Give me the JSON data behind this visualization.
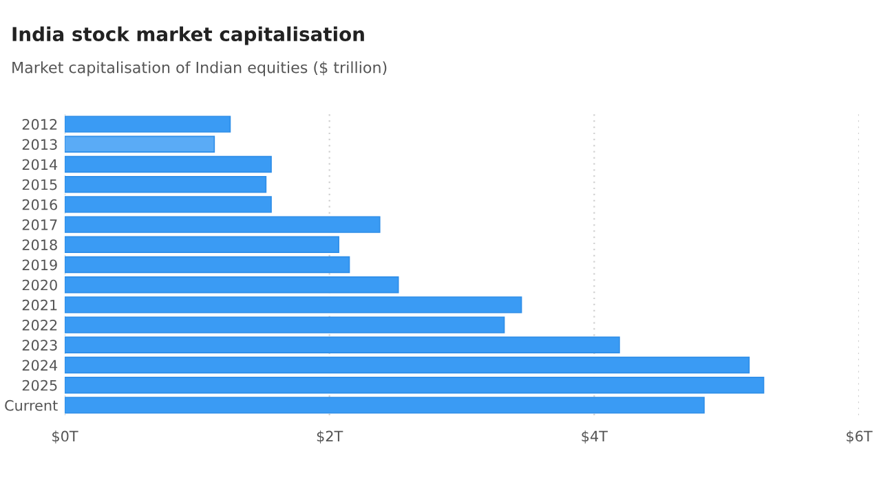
{
  "chart_data": {
    "type": "bar",
    "orientation": "horizontal",
    "title": "India stock market capitalisation",
    "subtitle": "Market capitalisation of Indian equities ($ trillion)",
    "categories": [
      "2012",
      "2013",
      "2014",
      "2015",
      "2016",
      "2017",
      "2018",
      "2019",
      "2020",
      "2021",
      "2022",
      "2023",
      "2024",
      "2025",
      "Current"
    ],
    "values": [
      1.25,
      1.13,
      1.56,
      1.52,
      1.56,
      2.38,
      2.07,
      2.15,
      2.52,
      3.45,
      3.32,
      4.19,
      5.17,
      5.28,
      4.83
    ],
    "colors": [
      "#3a9bf4",
      "#5aabf6",
      "#3a9bf4",
      "#3a9bf4",
      "#3a9bf4",
      "#3a9bf4",
      "#3a9bf4",
      "#3a9bf4",
      "#3a9bf4",
      "#3a9bf4",
      "#3a9bf4",
      "#3a9bf4",
      "#3a9bf4",
      "#3a9bf4",
      "#3a9bf4"
    ],
    "xlim": [
      0,
      6
    ],
    "xticks": [
      {
        "value": 0,
        "label": "$0T"
      },
      {
        "value": 2,
        "label": "$2T"
      },
      {
        "value": 4,
        "label": "$4T"
      },
      {
        "value": 6,
        "label": "$6T"
      }
    ],
    "grid": "x",
    "legend": false
  }
}
